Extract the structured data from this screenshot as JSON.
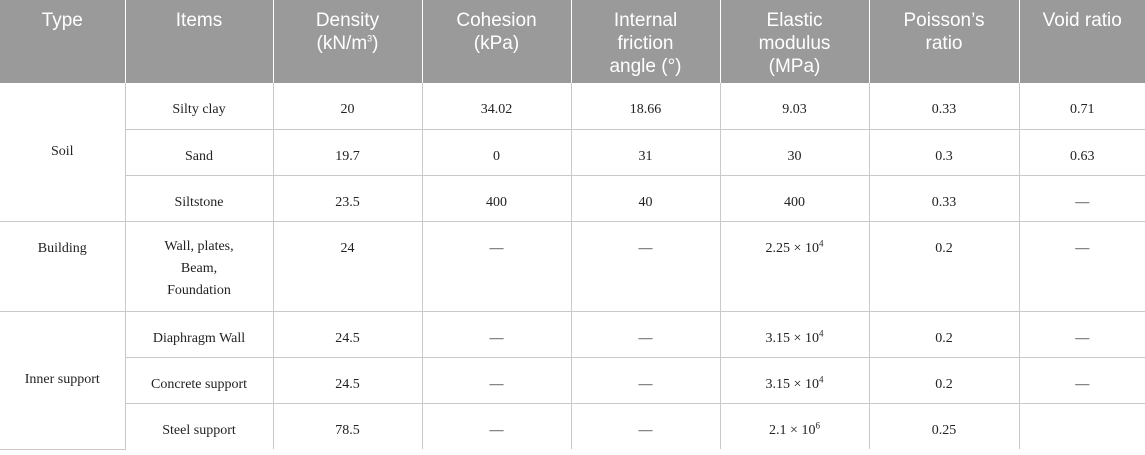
{
  "headers": {
    "type": "Type",
    "items": "Items",
    "density": [
      "Density",
      "(kN/m"
    ],
    "density_exp": "3",
    "density_close": ")",
    "cohesion": [
      "Cohesion",
      "(kPa)"
    ],
    "friction": [
      "Internal",
      "friction",
      "angle (°)"
    ],
    "elastic": [
      "Elastic",
      "modulus",
      "(MPa)"
    ],
    "poisson": [
      "Poisson’s",
      "ratio"
    ],
    "void": "Void ratio"
  },
  "groups": {
    "soil": "Soil",
    "building": "Building",
    "inner_support": "Inner support"
  },
  "rows": {
    "silty_clay": {
      "item": "Silty clay",
      "density": "20",
      "cohesion": "34.02",
      "friction": "18.66",
      "elastic": "9.03",
      "poisson": "0.33",
      "void": "0.71"
    },
    "sand": {
      "item": "Sand",
      "density": "19.7",
      "cohesion": "0",
      "friction": "31",
      "elastic": "30",
      "poisson": "0.3",
      "void": "0.63"
    },
    "siltstone": {
      "item": "Siltstone",
      "density": "23.5",
      "cohesion": "400",
      "friction": "40",
      "elastic": "400",
      "poisson": "0.33",
      "void": "—"
    },
    "building": {
      "item_lines": [
        "Wall, plates,",
        "Beam,",
        "Foundation"
      ],
      "density": "24",
      "cohesion": "—",
      "friction": "—",
      "elastic_base": "2.25 × 10",
      "elastic_exp": "4",
      "poisson": "0.2",
      "void": "—"
    },
    "diaphragm_wall": {
      "item": "Diaphragm Wall",
      "density": "24.5",
      "cohesion": "—",
      "friction": "—",
      "elastic_base": "3.15 × 10",
      "elastic_exp": "4",
      "poisson": "0.2",
      "void": "—"
    },
    "concrete_support": {
      "item": "Concrete support",
      "density": "24.5",
      "cohesion": "—",
      "friction": "—",
      "elastic_base": "3.15 × 10",
      "elastic_exp": "4",
      "poisson": "0.2",
      "void": "—"
    },
    "steel_support": {
      "item": "Steel support",
      "density": "78.5",
      "cohesion": "—",
      "friction": "—",
      "elastic_base": "2.1 × 10",
      "elastic_exp": "6",
      "poisson": "0.25",
      "void": ""
    }
  }
}
